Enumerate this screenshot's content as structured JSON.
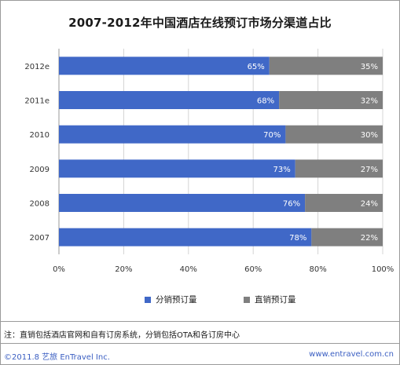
{
  "chart_data": {
    "type": "bar",
    "orientation": "horizontal",
    "stacked": true,
    "title": "2007-2012年中国酒店在线预订市场分渠道占比",
    "categories": [
      "2012e",
      "2011e",
      "2010",
      "2009",
      "2008",
      "2007"
    ],
    "series": [
      {
        "name": "分销预订量",
        "color": "#4068c7",
        "values": [
          65,
          68,
          70,
          73,
          76,
          78
        ],
        "labels": [
          "65%",
          "68%",
          "70%",
          "73%",
          "76%",
          "78%"
        ]
      },
      {
        "name": "直销预订量",
        "color": "#7f7f7f",
        "values": [
          35,
          32,
          30,
          27,
          24,
          22
        ],
        "labels": [
          "35%",
          "32%",
          "30%",
          "27%",
          "24%",
          "22%"
        ]
      }
    ],
    "xlim": [
      0,
      100
    ],
    "x_ticks": [
      0,
      20,
      40,
      60,
      80,
      100
    ],
    "x_tick_labels": [
      "0%",
      "20%",
      "40%",
      "60%",
      "80%",
      "100%"
    ],
    "grid": "vertical",
    "legend_position": "bottom"
  },
  "note": "注：直销包括酒店官网和自有订房系统，分销包括OTA和各订房中心",
  "footer": {
    "copyright": "©2011.8 艺旅 EnTravel Inc.",
    "website": "www.entravel.com.cn"
  }
}
